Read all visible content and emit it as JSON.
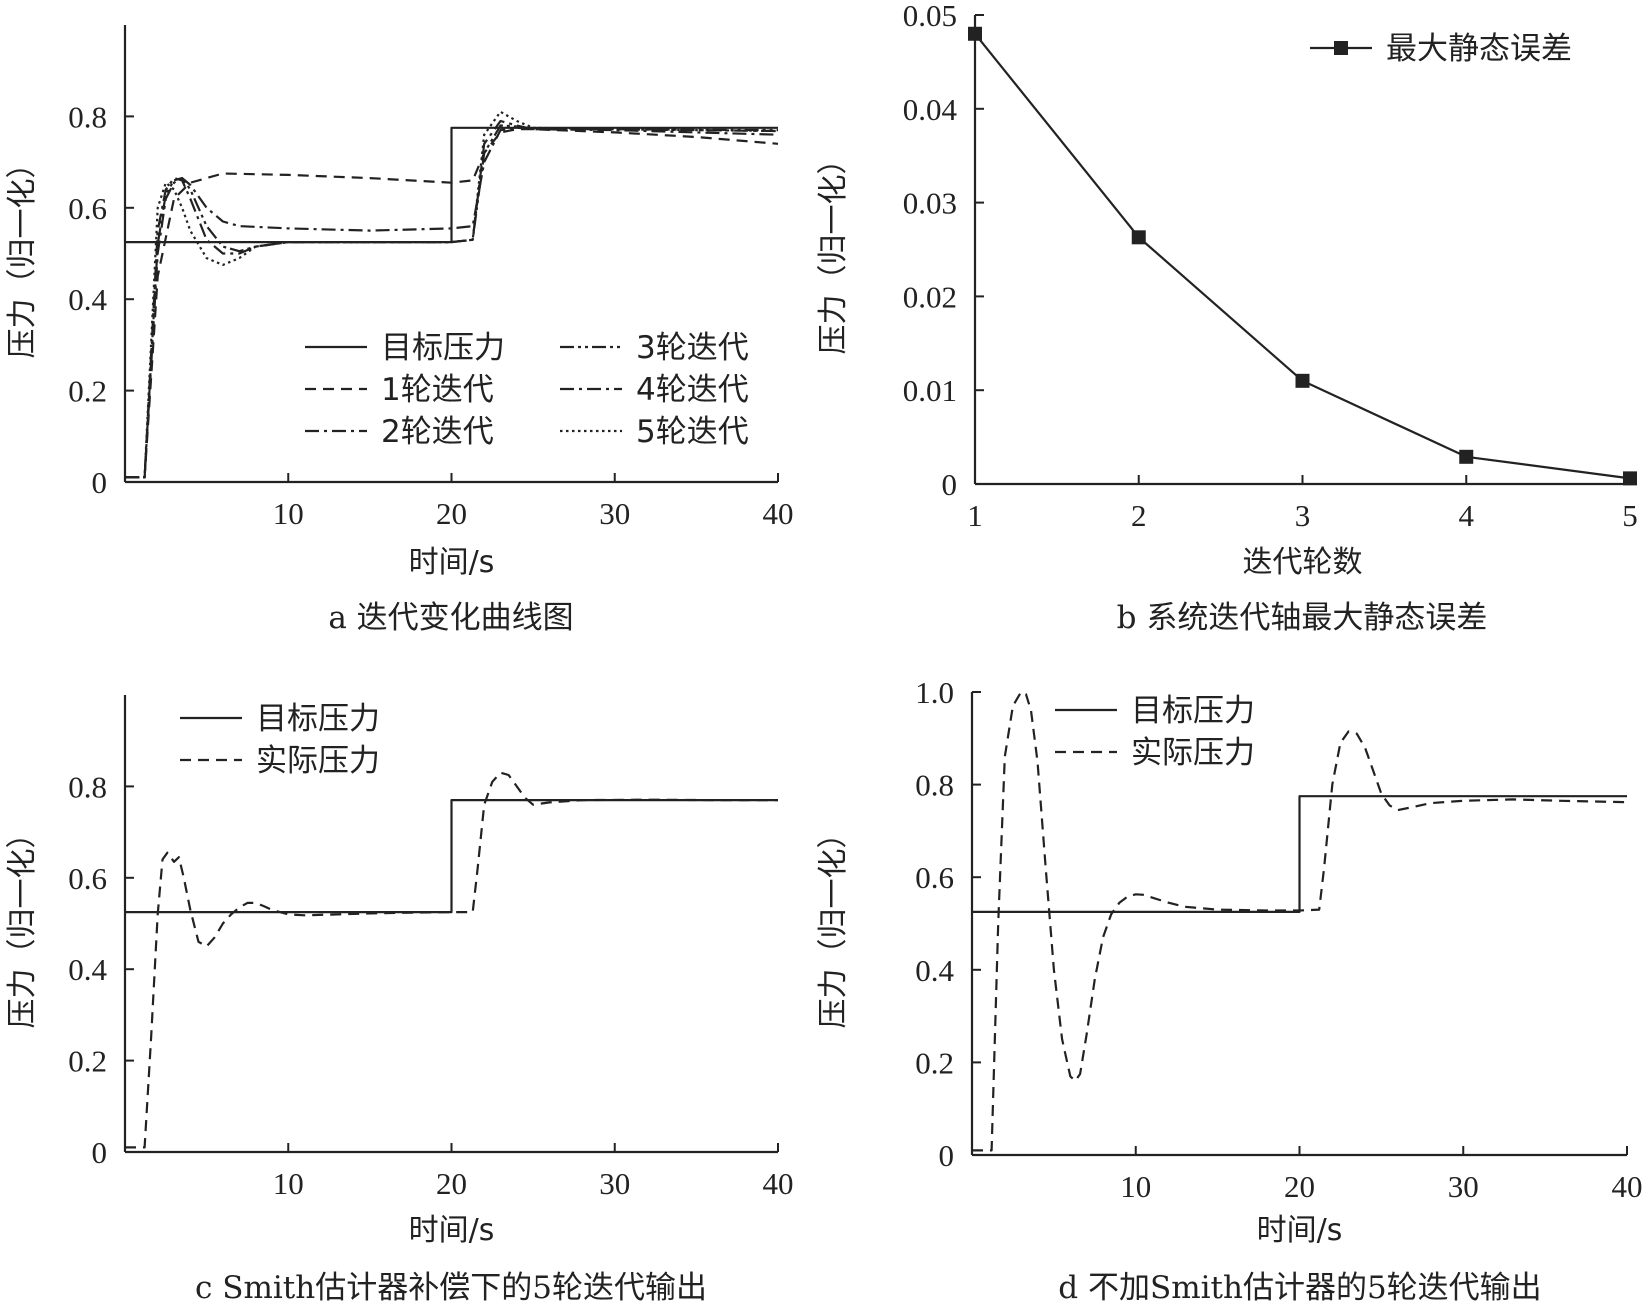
{
  "colors": {
    "ink": "#222222",
    "background": "#ffffff"
  },
  "chart_data": [
    {
      "id": "a",
      "type": "line",
      "caption": "a 迭代变化曲线图",
      "xlabel": "时间/s",
      "ylabel": "压力（归一化）",
      "xlim": [
        0,
        40
      ],
      "ylim": [
        0,
        1.0
      ],
      "xticks": [
        10,
        20,
        30,
        40
      ],
      "yticks": [
        0,
        0.2,
        0.4,
        0.6,
        0.8
      ],
      "ytick_labels": [
        "0",
        "0.2",
        "0.4",
        "0.6",
        "0.8"
      ],
      "grid": false,
      "legend_position": "lower-center",
      "legend_columns": 2,
      "series": [
        {
          "name": "目标压力",
          "style": "solid",
          "x": [
            0,
            20,
            20,
            40
          ],
          "y": [
            0.525,
            0.525,
            0.775,
            0.775
          ]
        },
        {
          "name": "1轮迭代",
          "style": "dashed",
          "x": [
            0,
            1.2,
            2,
            3,
            4,
            5,
            6,
            10,
            15,
            20,
            21.3,
            22,
            23,
            24,
            25,
            30,
            35,
            40
          ],
          "y": [
            0.01,
            0.01,
            0.45,
            0.62,
            0.655,
            0.665,
            0.675,
            0.672,
            0.665,
            0.655,
            0.66,
            0.72,
            0.765,
            0.772,
            0.772,
            0.765,
            0.755,
            0.74
          ]
        },
        {
          "name": "2轮迭代",
          "style": "dashdot",
          "x": [
            0,
            1.2,
            2,
            2.5,
            3,
            3.5,
            4,
            5,
            6,
            7,
            10,
            15,
            20,
            21.3,
            22,
            23,
            24,
            25,
            30,
            35,
            40
          ],
          "y": [
            0.01,
            0.01,
            0.5,
            0.62,
            0.655,
            0.665,
            0.65,
            0.6,
            0.57,
            0.56,
            0.555,
            0.55,
            0.555,
            0.56,
            0.7,
            0.77,
            0.775,
            0.774,
            0.772,
            0.77,
            0.768
          ]
        },
        {
          "name": "3轮迭代",
          "style": "dashdotdot",
          "x": [
            0,
            1.2,
            2,
            2.5,
            3,
            3.5,
            4,
            5,
            6,
            7,
            8,
            10,
            15,
            20,
            21.3,
            22,
            23,
            24,
            25,
            30,
            35,
            40
          ],
          "y": [
            0.01,
            0.01,
            0.52,
            0.63,
            0.66,
            0.665,
            0.64,
            0.56,
            0.515,
            0.505,
            0.515,
            0.525,
            0.525,
            0.525,
            0.53,
            0.72,
            0.78,
            0.778,
            0.772,
            0.772,
            0.771,
            0.77
          ]
        },
        {
          "name": "4轮迭代",
          "style": "dashdot",
          "x": [
            0,
            1.2,
            2,
            2.5,
            3,
            3.5,
            4,
            5,
            6,
            7,
            8,
            10,
            15,
            20,
            21.3,
            22,
            23,
            24,
            25,
            30,
            35,
            40
          ],
          "y": [
            0.01,
            0.01,
            0.55,
            0.64,
            0.665,
            0.66,
            0.62,
            0.53,
            0.5,
            0.5,
            0.515,
            0.525,
            0.525,
            0.525,
            0.53,
            0.74,
            0.79,
            0.78,
            0.772,
            0.77,
            0.765,
            0.76
          ]
        },
        {
          "name": "5轮迭代",
          "style": "dotted",
          "x": [
            0,
            1.2,
            2,
            2.5,
            3,
            3.5,
            4,
            5,
            6,
            7,
            8,
            10,
            15,
            20,
            21.3,
            22,
            23,
            24,
            25,
            30,
            35,
            40
          ],
          "y": [
            0.01,
            0.01,
            0.6,
            0.655,
            0.64,
            0.6,
            0.55,
            0.49,
            0.475,
            0.49,
            0.515,
            0.525,
            0.525,
            0.525,
            0.53,
            0.76,
            0.81,
            0.79,
            0.775,
            0.772,
            0.77,
            0.768
          ]
        }
      ]
    },
    {
      "id": "b",
      "type": "line",
      "caption": "b 系统迭代轴最大静态误差",
      "xlabel": "迭代轮数",
      "ylabel": "压力（归一化）",
      "xlim": [
        1,
        5
      ],
      "ylim": [
        0,
        0.05
      ],
      "xticks": [
        1,
        2,
        3,
        4,
        5
      ],
      "yticks": [
        0,
        0.01,
        0.02,
        0.03,
        0.04,
        0.05
      ],
      "ytick_labels": [
        "0",
        "0.01",
        "0.02",
        "0.03",
        "0.04",
        "0.05"
      ],
      "grid": false,
      "legend_position": "top-right",
      "series": [
        {
          "name": "最大静态误差",
          "style": "solid-marker",
          "x": [
            1,
            2,
            3,
            4,
            5
          ],
          "y": [
            0.048,
            0.0263,
            0.011,
            0.0029,
            0.0006
          ]
        }
      ]
    },
    {
      "id": "c",
      "type": "line",
      "caption": "c Smith估计器补偿下的5轮迭代输出",
      "xlabel": "时间/s",
      "ylabel": "压力（归一化）",
      "xlim": [
        0,
        40
      ],
      "ylim": [
        0,
        1.0
      ],
      "xticks": [
        10,
        20,
        30,
        40
      ],
      "yticks": [
        0,
        0.2,
        0.4,
        0.6,
        0.8
      ],
      "ytick_labels": [
        "0",
        "0.2",
        "0.4",
        "0.6",
        "0.8"
      ],
      "grid": false,
      "legend_position": "top-left",
      "series": [
        {
          "name": "目标压力",
          "style": "solid",
          "x": [
            0,
            20,
            20,
            40
          ],
          "y": [
            0.525,
            0.525,
            0.77,
            0.77
          ]
        },
        {
          "name": "实际压力",
          "style": "dashed",
          "x": [
            0,
            1.2,
            1.6,
            2.0,
            2.3,
            2.6,
            3.0,
            3.3,
            3.6,
            4.0,
            4.5,
            5.0,
            5.5,
            6.0,
            6.5,
            7.0,
            7.5,
            8.0,
            8.5,
            9.0,
            10.0,
            11.0,
            13.0,
            15.0,
            18.0,
            20.0,
            21.3,
            21.6,
            22.0,
            22.5,
            23.0,
            23.5,
            24.0,
            24.5,
            25.0,
            26.0,
            28.0,
            32.0,
            36.0,
            40.0
          ],
          "y": [
            0.01,
            0.01,
            0.25,
            0.52,
            0.64,
            0.655,
            0.635,
            0.645,
            0.6,
            0.53,
            0.46,
            0.45,
            0.47,
            0.5,
            0.52,
            0.535,
            0.545,
            0.545,
            0.538,
            0.53,
            0.52,
            0.518,
            0.52,
            0.522,
            0.524,
            0.525,
            0.525,
            0.62,
            0.76,
            0.81,
            0.83,
            0.825,
            0.8,
            0.775,
            0.76,
            0.765,
            0.77,
            0.771,
            0.77,
            0.77
          ]
        }
      ]
    },
    {
      "id": "d",
      "type": "line",
      "caption": "d 不加Smith估计器的5轮迭代输出",
      "xlabel": "时间/s",
      "ylabel": "压力（归一化）",
      "xlim": [
        0,
        40
      ],
      "ylim": [
        0,
        1.0
      ],
      "xticks": [
        10,
        20,
        30,
        40
      ],
      "yticks": [
        0,
        0.2,
        0.4,
        0.6,
        0.8,
        1.0
      ],
      "ytick_labels": [
        "0",
        "0.2",
        "0.4",
        "0.6",
        "0.8",
        "1.0"
      ],
      "grid": false,
      "legend_position": "top-left",
      "series": [
        {
          "name": "目标压力",
          "style": "solid",
          "x": [
            0,
            20,
            20,
            40
          ],
          "y": [
            0.525,
            0.525,
            0.775,
            0.775
          ]
        },
        {
          "name": "实际压力",
          "style": "dashed",
          "x": [
            0,
            1.2,
            1.6,
            2.0,
            2.5,
            3.0,
            3.3,
            3.6,
            4.0,
            4.5,
            5.0,
            5.5,
            6.0,
            6.3,
            6.6,
            7.0,
            7.5,
            8.0,
            8.5,
            9.0,
            9.5,
            10.0,
            10.5,
            11.0,
            12.0,
            13.0,
            15.0,
            18.0,
            20.0,
            21.2,
            21.5,
            22.0,
            22.5,
            23.0,
            23.5,
            24.0,
            24.5,
            25.0,
            25.5,
            26.0,
            27.0,
            28.0,
            30.0,
            33.0,
            36.0,
            40.0
          ],
          "y": [
            0.01,
            0.01,
            0.5,
            0.86,
            0.97,
            1.0,
            0.995,
            0.96,
            0.85,
            0.62,
            0.4,
            0.25,
            0.17,
            0.16,
            0.175,
            0.26,
            0.38,
            0.47,
            0.52,
            0.545,
            0.558,
            0.563,
            0.562,
            0.556,
            0.545,
            0.536,
            0.53,
            0.528,
            0.528,
            0.53,
            0.62,
            0.8,
            0.89,
            0.915,
            0.91,
            0.88,
            0.83,
            0.78,
            0.755,
            0.745,
            0.752,
            0.76,
            0.765,
            0.768,
            0.765,
            0.762
          ]
        }
      ]
    }
  ]
}
